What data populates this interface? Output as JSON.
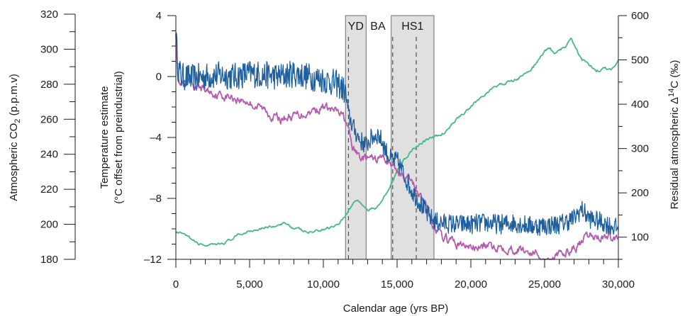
{
  "chart_data": {
    "type": "line",
    "x_axis": {
      "label": "Calendar age (yrs BP)",
      "range": [
        0,
        30000
      ],
      "ticks": [
        0,
        5000,
        10000,
        15000,
        20000,
        25000,
        30000
      ],
      "tick_labels": [
        "0",
        "5,000",
        "10,000",
        "15,000",
        "20,000",
        "25,000",
        "30,000"
      ]
    },
    "y_axes": {
      "co2": {
        "label_lines": [
          "Atmospheric CO",
          "2",
          " (p.p.m.v)"
        ],
        "range": [
          180,
          320
        ],
        "ticks": [
          180,
          200,
          220,
          240,
          260,
          280,
          300,
          320
        ],
        "tick_labels": [
          "180",
          "200",
          "220",
          "240",
          "260",
          "280",
          "300",
          "320"
        ]
      },
      "temperature": {
        "label_line1": "Temperature estimate",
        "label_line2": "(°C offset from preindustrial)",
        "range": [
          -12,
          4
        ],
        "ticks": [
          -12,
          -8,
          -4,
          0,
          4
        ],
        "tick_labels": [
          "–12",
          "–8",
          "–4",
          "0",
          "4"
        ]
      },
      "c14": {
        "label_parts": [
          "Residual atmospheric Δ",
          "14",
          "C (‰)"
        ],
        "range": [
          50,
          600
        ],
        "ticks": [
          100,
          200,
          300,
          400,
          500,
          600
        ],
        "tick_labels": [
          "100",
          "200",
          "300",
          "400",
          "500",
          "600"
        ]
      }
    },
    "bands": [
      {
        "label": "YD",
        "from": 11500,
        "to": 12900,
        "dashed_at": [
          11700
        ]
      },
      {
        "label": "HS1",
        "from": 14600,
        "to": 17500,
        "dashed_at": [
          14700,
          16300
        ]
      }
    ],
    "annotations": [
      {
        "label": "BA",
        "x": 13700
      }
    ],
    "colors": {
      "temperature_blue": "#1f5f9e",
      "temperature_magenta": "#b45cae",
      "c14_green": "#45b985",
      "band_fill": "#e0e0e0",
      "band_stroke": "#6e6e6e"
    },
    "series": [
      {
        "key": "temp_stack",
        "axis": "temperature",
        "color": "#1f5f9e",
        "noise": 0.65,
        "x": [
          0,
          150,
          400,
          1000,
          2000,
          3000,
          4000,
          5000,
          6000,
          7000,
          8000,
          9000,
          10000,
          11000,
          11500,
          11700,
          11900,
          12100,
          12500,
          12900,
          13300,
          13700,
          14000,
          14300,
          14700,
          15000,
          15500,
          16000,
          16500,
          17000,
          17500,
          18000,
          19000,
          20000,
          21000,
          22000,
          23000,
          24000,
          25000,
          26000,
          27000,
          27500,
          28000,
          29000,
          29500,
          30000
        ],
        "y": [
          2.8,
          0.5,
          0.0,
          -0.1,
          0.0,
          0.1,
          0.0,
          0.2,
          0.1,
          0.0,
          0.2,
          0.0,
          -0.2,
          -0.5,
          -1.0,
          -2.5,
          -3.0,
          -3.5,
          -4.2,
          -4.5,
          -4.0,
          -3.8,
          -4.3,
          -5.0,
          -5.6,
          -5.5,
          -6.5,
          -7.5,
          -8.2,
          -9.0,
          -9.5,
          -9.6,
          -9.7,
          -9.7,
          -9.6,
          -9.7,
          -9.6,
          -9.8,
          -9.8,
          -9.7,
          -9.3,
          -8.7,
          -9.3,
          -9.6,
          -9.8,
          -10.0
        ]
      },
      {
        "key": "temp_model",
        "axis": "temperature",
        "color": "#b45cae",
        "noise": 0.22,
        "x": [
          0,
          150,
          300,
          1000,
          2000,
          3000,
          4000,
          5000,
          6000,
          7000,
          8000,
          9000,
          10000,
          11000,
          11500,
          11800,
          12000,
          12500,
          13000,
          13500,
          14000,
          14500,
          15000,
          15500,
          16000,
          16500,
          17000,
          17500,
          18000,
          19000,
          20000,
          21000,
          22000,
          23000,
          24000,
          24500,
          25000,
          26000,
          27000,
          27500,
          28000,
          29000,
          30000
        ],
        "y": [
          3.0,
          0.0,
          -0.5,
          -0.6,
          -0.9,
          -1.2,
          -1.4,
          -1.7,
          -2.2,
          -2.8,
          -2.6,
          -2.3,
          -2.0,
          -2.4,
          -2.8,
          -4.0,
          -4.8,
          -5.3,
          -5.4,
          -5.5,
          -5.3,
          -5.6,
          -6.2,
          -6.5,
          -7.0,
          -7.6,
          -8.5,
          -9.8,
          -10.5,
          -11.0,
          -11.2,
          -11.2,
          -11.1,
          -11.3,
          -11.5,
          -11.6,
          -12.0,
          -11.8,
          -11.2,
          -11.0,
          -10.5,
          -10.5,
          -10.6
        ]
      },
      {
        "key": "c14",
        "axis": "c14",
        "color": "#45b985",
        "noise": 2.5,
        "x": [
          0,
          500,
          1000,
          1500,
          2000,
          2500,
          3000,
          3500,
          4000,
          5000,
          6000,
          7000,
          7500,
          8000,
          9000,
          10000,
          11000,
          11500,
          12000,
          12300,
          12600,
          13000,
          13500,
          14000,
          14500,
          15000,
          15500,
          16000,
          16500,
          17000,
          17500,
          18000,
          18500,
          19000,
          20000,
          21000,
          22000,
          23000,
          24000,
          24500,
          25000,
          25400,
          25700,
          26000,
          26400,
          26800,
          27100,
          27500,
          28000,
          28500,
          29000,
          29500,
          30000
        ],
        "y": [
          112,
          105,
          95,
          85,
          82,
          80,
          84,
          90,
          100,
          115,
          123,
          125,
          132,
          120,
          110,
          118,
          130,
          150,
          175,
          185,
          175,
          160,
          165,
          185,
          215,
          250,
          275,
          295,
          310,
          320,
          325,
          330,
          345,
          365,
          395,
          425,
          445,
          455,
          475,
          495,
          520,
          525,
          510,
          520,
          530,
          545,
          530,
          500,
          490,
          475,
          480,
          478,
          500
        ]
      }
    ]
  }
}
